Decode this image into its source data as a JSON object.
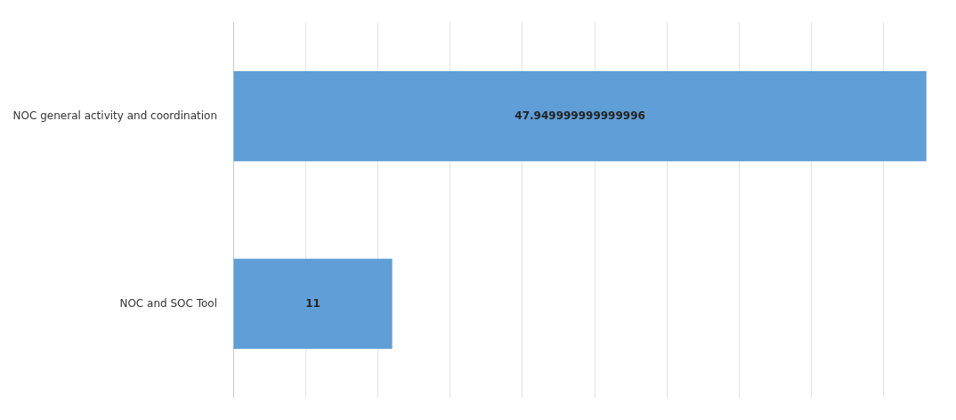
{
  "chart_data": {
    "type": "bar",
    "orientation": "horizontal",
    "categories": [
      "NOC general activity and coordination",
      "NOC and SOC Tool"
    ],
    "values": [
      47.949999999999996,
      11
    ],
    "color": "#5f9ed6",
    "data_labels": true,
    "grid": "x",
    "legend": false,
    "tick_labels": "y"
  }
}
